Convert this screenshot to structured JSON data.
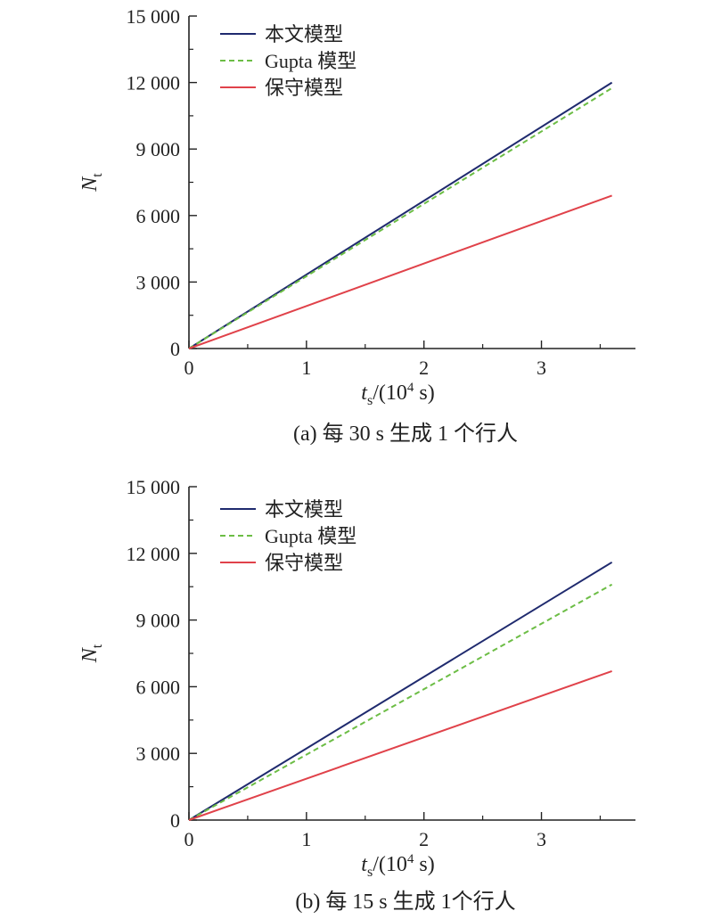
{
  "colors": {
    "s1": "#1f2a6e",
    "s2": "#6cbd45",
    "s3": "#e0424a",
    "axis": "#222222"
  },
  "chart_data": [
    {
      "type": "line",
      "caption": "(a) 每 30 s 生成 1 个行人",
      "xlabel_main": "t",
      "xlabel_sub": "s",
      "xlabel_rest": "/(10",
      "xlabel_sup": "4",
      "xlabel_end": " s)",
      "ylabel_main": "N",
      "ylabel_sub": "t",
      "xlim": [
        0,
        3.8
      ],
      "ylim": [
        0,
        15000
      ],
      "xticks": [
        "0",
        "1",
        "2",
        "3"
      ],
      "yticks": [
        "0",
        "3 000",
        "6 000",
        "9 000",
        "12 000",
        "15 000"
      ],
      "legend_position": "top-left",
      "series": [
        {
          "name": "本文模型",
          "style": "solid",
          "x": [
            0,
            3.6
          ],
          "y": [
            0,
            12000
          ]
        },
        {
          "name": "Gupta 模型",
          "style": "dashed",
          "x": [
            0,
            3.6
          ],
          "y": [
            0,
            11750
          ]
        },
        {
          "name": "保守模型",
          "style": "solid",
          "x": [
            0,
            3.6
          ],
          "y": [
            0,
            6900
          ]
        }
      ]
    },
    {
      "type": "line",
      "caption": "(b) 每 15 s 生成 1个行人",
      "xlabel_main": "t",
      "xlabel_sub": "s",
      "xlabel_rest": "/(10",
      "xlabel_sup": "4",
      "xlabel_end": " s)",
      "ylabel_main": "N",
      "ylabel_sub": "t",
      "xlim": [
        0,
        3.8
      ],
      "ylim": [
        0,
        15000
      ],
      "xticks": [
        "0",
        "1",
        "2",
        "3"
      ],
      "yticks": [
        "0",
        "3 000",
        "6 000",
        "9 000",
        "12 000",
        "15 000"
      ],
      "legend_position": "top-left",
      "series": [
        {
          "name": "本文模型",
          "style": "solid",
          "x": [
            0,
            3.6
          ],
          "y": [
            0,
            11600
          ]
        },
        {
          "name": "Gupta 模型",
          "style": "dashed",
          "x": [
            0,
            3.6
          ],
          "y": [
            0,
            10600
          ]
        },
        {
          "name": "保守模型",
          "style": "solid",
          "x": [
            0,
            3.6
          ],
          "y": [
            0,
            6700
          ]
        }
      ]
    }
  ]
}
